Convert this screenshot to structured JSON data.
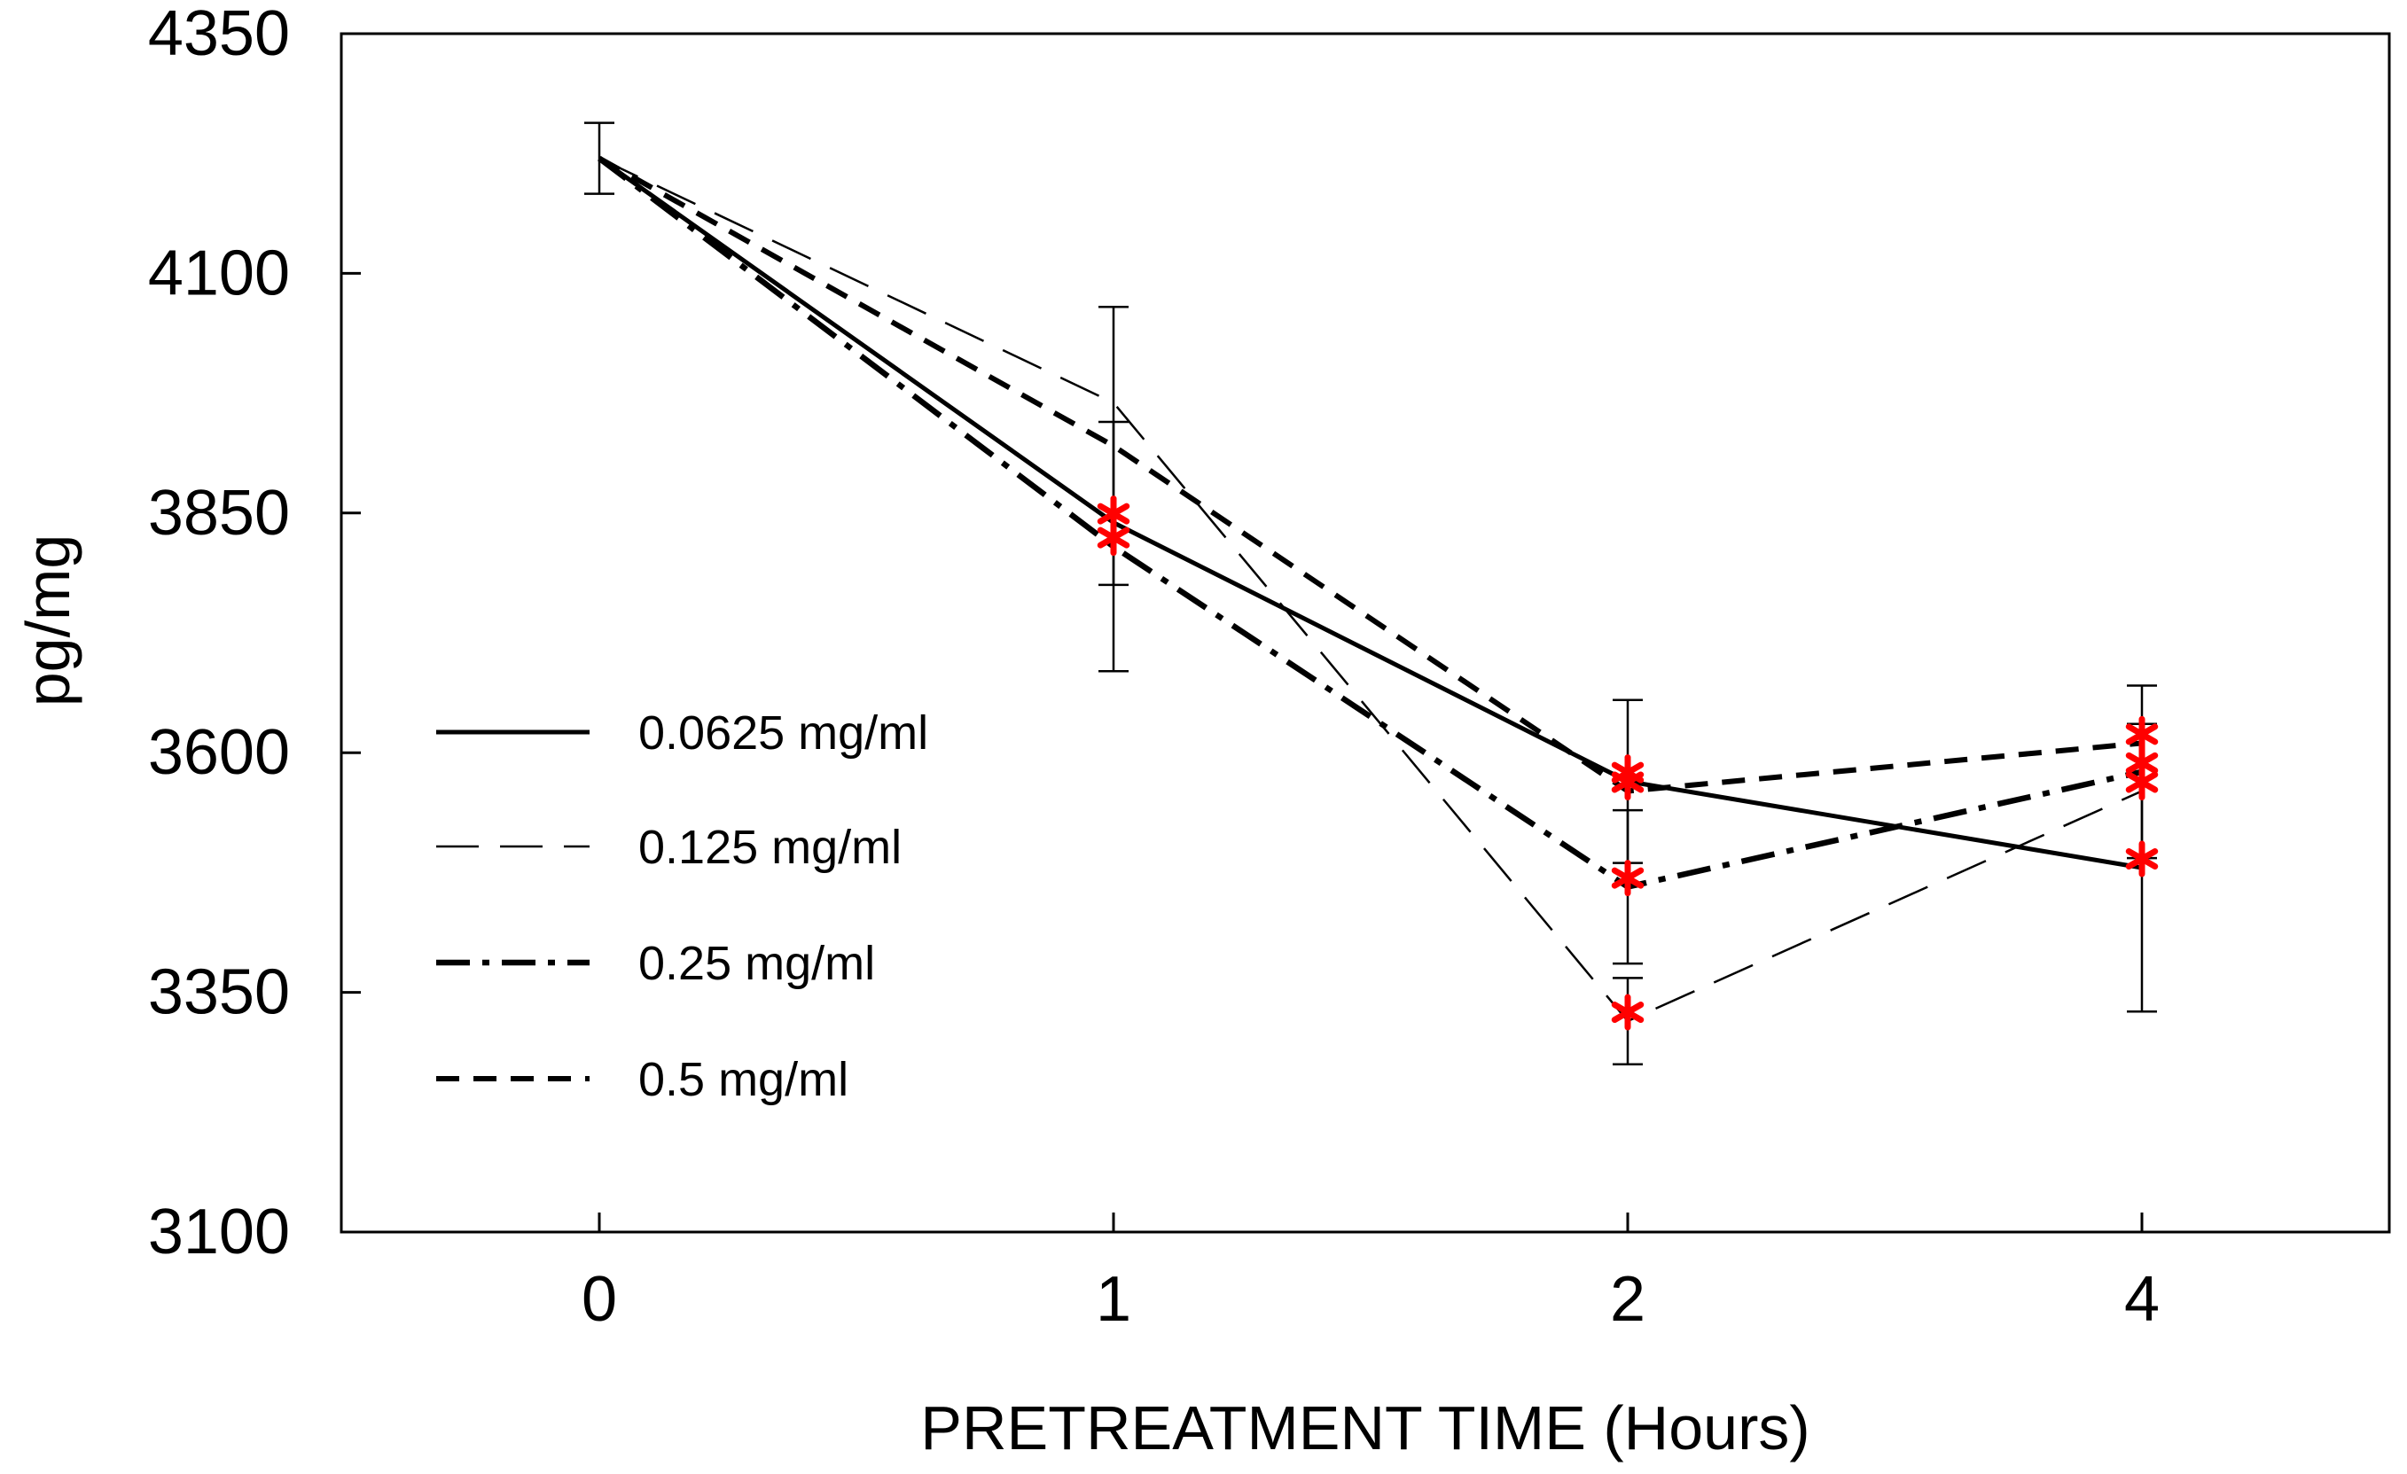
{
  "chart_data": {
    "type": "line",
    "title": "",
    "xlabel": "PRETREATMENT TIME (Hours)",
    "ylabel": "pg/mg",
    "categories": [
      "0",
      "1",
      "2",
      "4"
    ],
    "ylim": [
      3100,
      4350
    ],
    "yticks": [
      3100,
      3350,
      3600,
      3850,
      4100,
      4350
    ],
    "grid": false,
    "legend_position": "center-left",
    "series": [
      {
        "name": "0.0625 mg/ml",
        "style": "solid",
        "values": [
          4220,
          3840,
          3570,
          3480
        ],
        "errors": [
          null,
          null,
          85,
          150
        ],
        "significant": [
          false,
          true,
          true,
          true
        ]
      },
      {
        "name": "0.125 mg/ml",
        "style": "long-dash-thin",
        "values": [
          4220,
          3965,
          3320,
          3560
        ],
        "errors": [
          null,
          null,
          45,
          null
        ],
        "significant": [
          false,
          false,
          true,
          true
        ]
      },
      {
        "name": "0.25 mg/ml",
        "style": "dash-dot",
        "values": [
          4220,
          3815,
          3460,
          3580
        ],
        "errors": [
          null,
          130,
          80,
          90
        ],
        "significant": [
          false,
          true,
          true,
          true
        ]
      },
      {
        "name": "0.5 mg/ml",
        "style": "dashed",
        "values": [
          4220,
          3920,
          3560,
          3610
        ],
        "errors": [
          37,
          145,
          null,
          null
        ],
        "significant": [
          false,
          false,
          true,
          true
        ]
      }
    ],
    "colors": {
      "axis": "#000000",
      "line": "#000000",
      "significance_marker": "#ff0000"
    }
  }
}
